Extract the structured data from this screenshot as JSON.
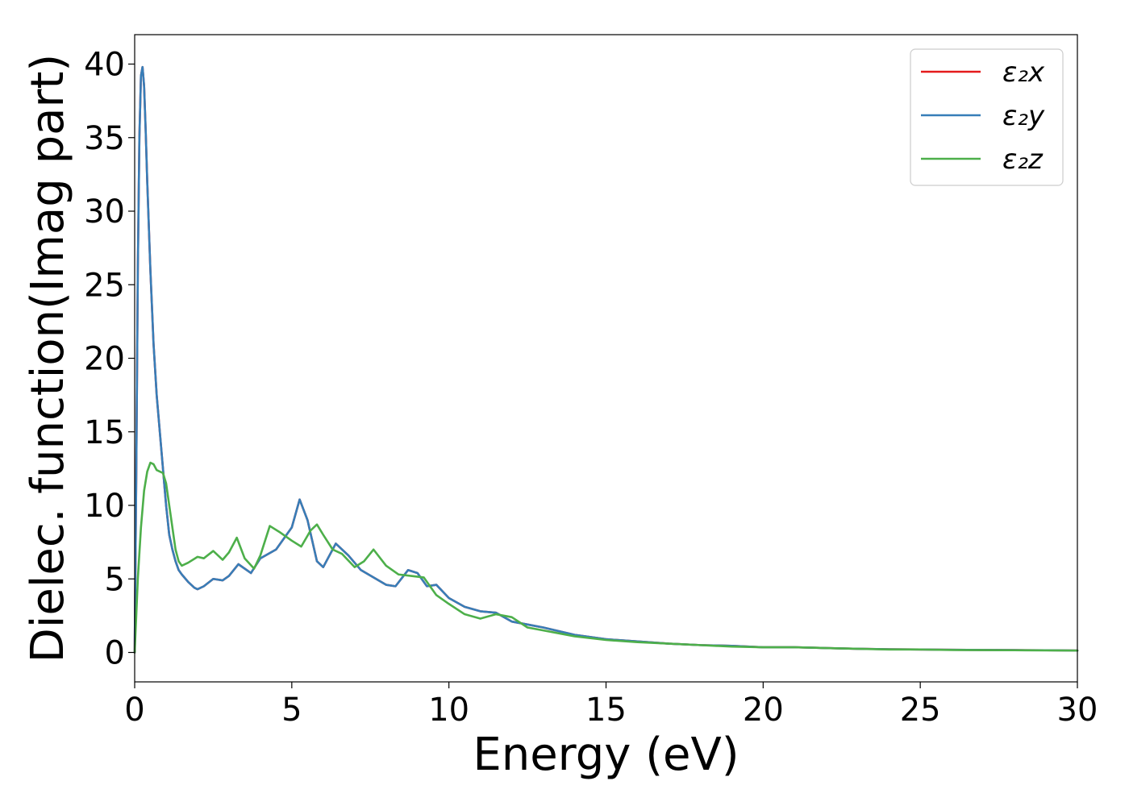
{
  "chart_data": {
    "type": "line",
    "title": "",
    "xlabel": "Energy (eV)",
    "ylabel": "Dielec. function(Imag part)",
    "xlim": [
      0,
      30
    ],
    "ylim": [
      -2,
      42
    ],
    "xticks": [
      0,
      5,
      10,
      15,
      20,
      25,
      30
    ],
    "yticks": [
      0,
      5,
      10,
      15,
      20,
      25,
      30,
      35,
      40
    ],
    "grid": false,
    "legend_position": "top-right",
    "series": [
      {
        "name": "ε₂x",
        "color": "#e41a1c",
        "x": [
          0,
          0.05,
          0.1,
          0.15,
          0.2,
          0.25,
          0.3,
          0.35,
          0.4,
          0.5,
          0.6,
          0.7,
          0.8,
          0.9,
          1.0,
          1.1,
          1.2,
          1.3,
          1.4,
          1.5,
          1.7,
          1.9,
          2.0,
          2.2,
          2.5,
          2.8,
          3.0,
          3.3,
          3.7,
          4.0,
          4.5,
          5.0,
          5.25,
          5.5,
          5.8,
          6.0,
          6.4,
          6.8,
          7.2,
          7.6,
          8.0,
          8.3,
          8.7,
          9.0,
          9.3,
          9.6,
          10.0,
          10.5,
          11.0,
          11.5,
          12.0,
          12.5,
          13.0,
          14.0,
          15.0,
          16.0,
          17.0,
          18.0,
          19.0,
          20.0,
          20.5,
          21.0,
          22.0,
          23.0,
          24.0,
          25.0,
          26.0,
          27.0,
          28.0,
          29.0,
          30.0
        ],
        "values": [
          0,
          12,
          26,
          35,
          39.2,
          39.8,
          38.5,
          35.5,
          32,
          26,
          21,
          17.5,
          15,
          12.5,
          10,
          8,
          7,
          6.2,
          5.6,
          5.3,
          4.8,
          4.4,
          4.3,
          4.5,
          5.0,
          4.9,
          5.2,
          6.0,
          5.4,
          6.4,
          7.0,
          8.5,
          10.4,
          9.0,
          6.2,
          5.8,
          7.4,
          6.6,
          5.6,
          5.1,
          4.6,
          4.5,
          5.6,
          5.4,
          4.5,
          4.6,
          3.7,
          3.1,
          2.8,
          2.7,
          2.1,
          1.9,
          1.7,
          1.2,
          0.9,
          0.75,
          0.6,
          0.5,
          0.45,
          0.35,
          0.35,
          0.35,
          0.3,
          0.25,
          0.22,
          0.2,
          0.18,
          0.17,
          0.16,
          0.15,
          0.13
        ]
      },
      {
        "name": "ε₂y",
        "color": "#377eb8",
        "x": [
          0,
          0.05,
          0.1,
          0.15,
          0.2,
          0.25,
          0.3,
          0.35,
          0.4,
          0.5,
          0.6,
          0.7,
          0.8,
          0.9,
          1.0,
          1.1,
          1.2,
          1.3,
          1.4,
          1.5,
          1.7,
          1.9,
          2.0,
          2.2,
          2.5,
          2.8,
          3.0,
          3.3,
          3.7,
          4.0,
          4.5,
          5.0,
          5.25,
          5.5,
          5.8,
          6.0,
          6.4,
          6.8,
          7.2,
          7.6,
          8.0,
          8.3,
          8.7,
          9.0,
          9.3,
          9.6,
          10.0,
          10.5,
          11.0,
          11.5,
          12.0,
          12.5,
          13.0,
          14.0,
          15.0,
          16.0,
          17.0,
          18.0,
          19.0,
          20.0,
          20.5,
          21.0,
          22.0,
          23.0,
          24.0,
          25.0,
          26.0,
          27.0,
          28.0,
          29.0,
          30.0
        ],
        "values": [
          0,
          12,
          26,
          35,
          39.2,
          39.8,
          38.5,
          35.5,
          32,
          26,
          21,
          17.5,
          15,
          12.5,
          10,
          8,
          7,
          6.2,
          5.6,
          5.3,
          4.8,
          4.4,
          4.3,
          4.5,
          5.0,
          4.9,
          5.2,
          6.0,
          5.4,
          6.4,
          7.0,
          8.5,
          10.4,
          9.0,
          6.2,
          5.8,
          7.4,
          6.6,
          5.6,
          5.1,
          4.6,
          4.5,
          5.6,
          5.4,
          4.5,
          4.6,
          3.7,
          3.1,
          2.8,
          2.7,
          2.1,
          1.9,
          1.7,
          1.2,
          0.9,
          0.75,
          0.6,
          0.5,
          0.45,
          0.35,
          0.35,
          0.35,
          0.3,
          0.25,
          0.22,
          0.2,
          0.18,
          0.17,
          0.16,
          0.15,
          0.13
        ]
      },
      {
        "name": "ε₂z",
        "color": "#4daf4a",
        "x": [
          0,
          0.1,
          0.2,
          0.3,
          0.4,
          0.5,
          0.6,
          0.7,
          0.8,
          0.9,
          1.0,
          1.1,
          1.2,
          1.3,
          1.4,
          1.5,
          1.7,
          2.0,
          2.2,
          2.5,
          2.8,
          3.0,
          3.25,
          3.5,
          3.8,
          4.0,
          4.3,
          4.6,
          5.0,
          5.3,
          5.6,
          5.8,
          6.0,
          6.3,
          6.6,
          7.0,
          7.3,
          7.6,
          8.0,
          8.4,
          8.8,
          9.2,
          9.6,
          10.0,
          10.5,
          11.0,
          11.5,
          12.0,
          12.5,
          13.0,
          14.0,
          15.0,
          16.0,
          17.0,
          18.0,
          19.0,
          20.0,
          21.0,
          22.0,
          23.0,
          24.0,
          25.0,
          26.0,
          27.0,
          28.0,
          29.0,
          30.0
        ],
        "values": [
          0,
          5,
          8.5,
          11,
          12.3,
          12.9,
          12.8,
          12.4,
          12.3,
          12.2,
          11.5,
          10,
          8.5,
          7,
          6.2,
          5.9,
          6.1,
          6.5,
          6.4,
          6.9,
          6.3,
          6.8,
          7.8,
          6.4,
          5.7,
          6.6,
          8.6,
          8.2,
          7.6,
          7.2,
          8.3,
          8.7,
          8.0,
          7.0,
          6.7,
          5.8,
          6.2,
          7.0,
          5.9,
          5.3,
          5.2,
          5.1,
          3.9,
          3.3,
          2.6,
          2.3,
          2.6,
          2.4,
          1.7,
          1.5,
          1.1,
          0.85,
          0.7,
          0.6,
          0.5,
          0.4,
          0.35,
          0.35,
          0.3,
          0.25,
          0.2,
          0.2,
          0.17,
          0.16,
          0.15,
          0.14,
          0.13
        ]
      }
    ]
  }
}
